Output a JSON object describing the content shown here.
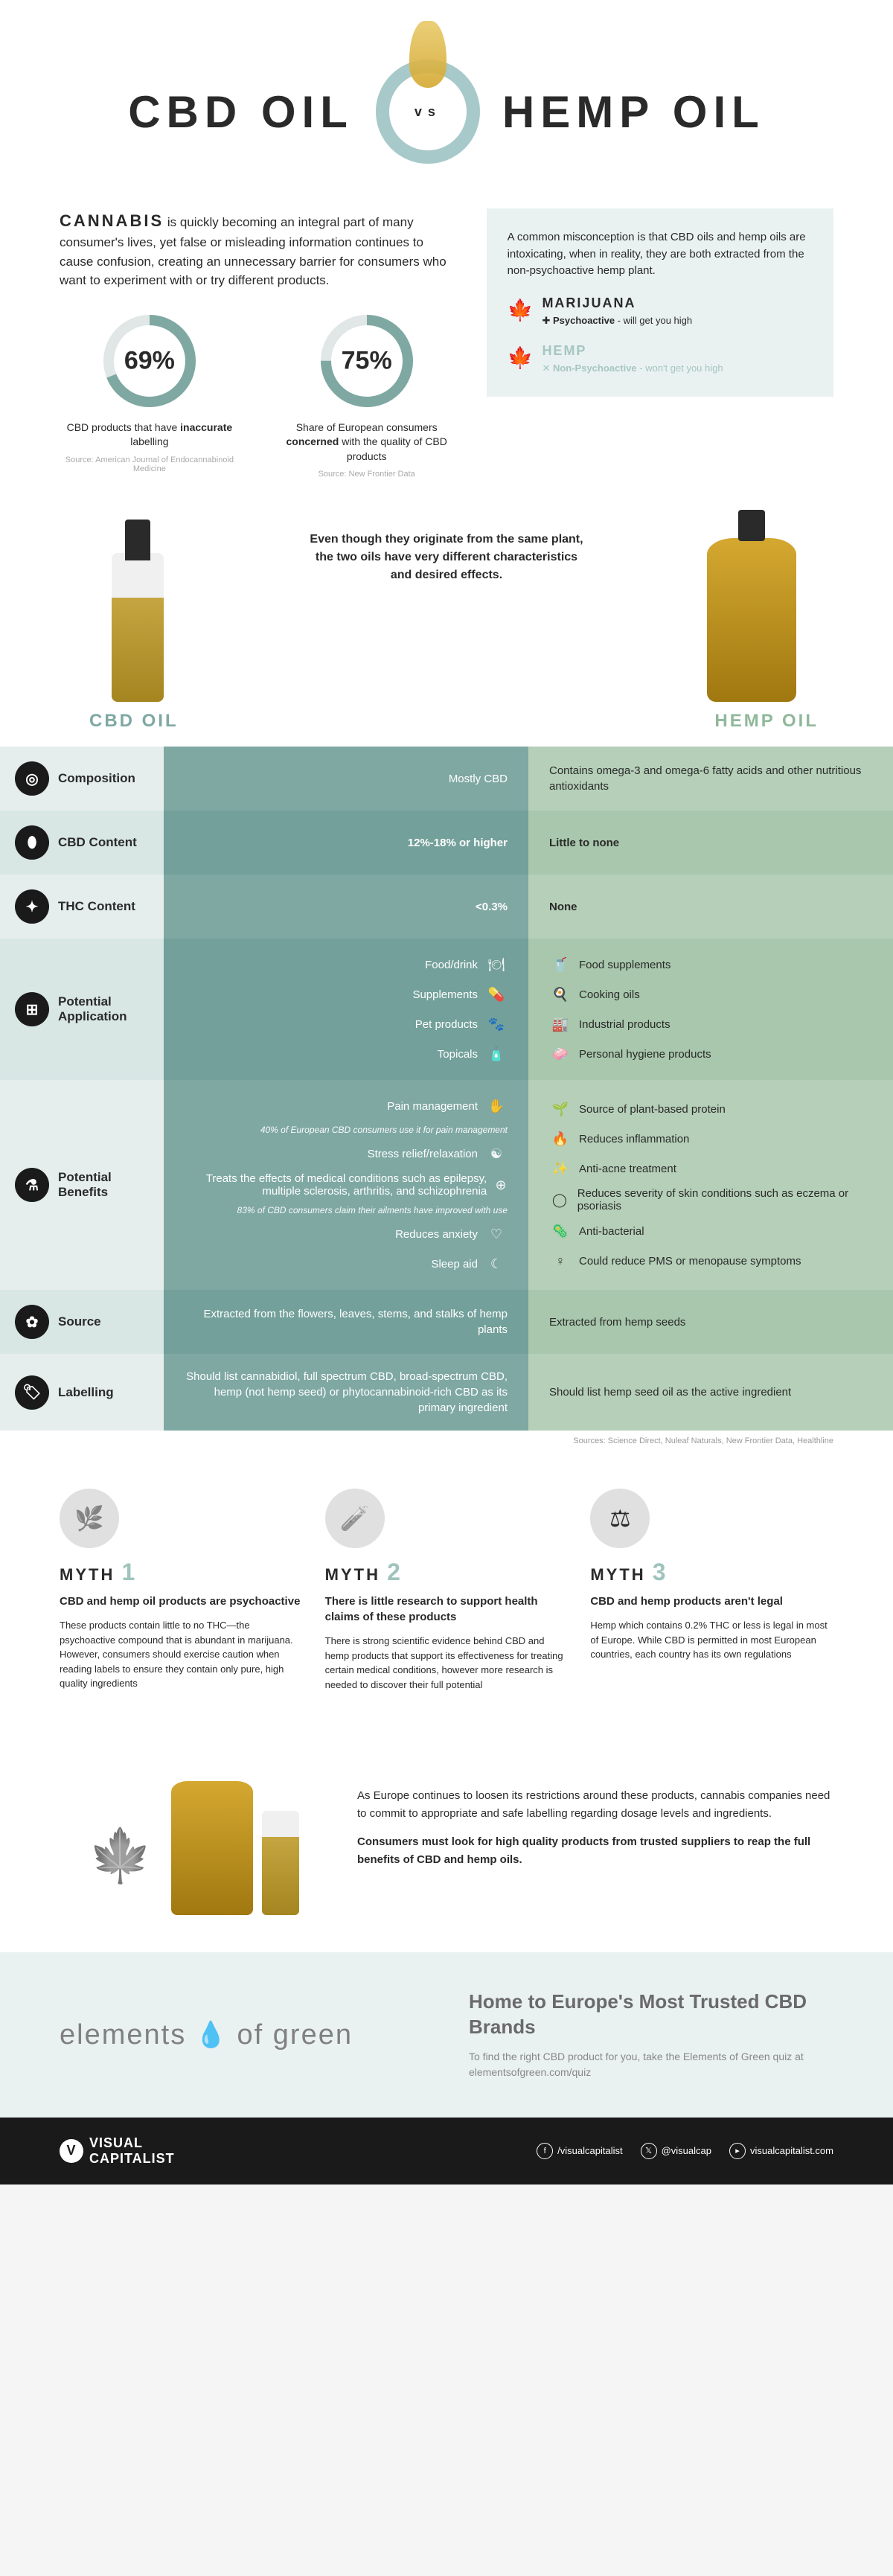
{
  "title_left": "CBD OIL",
  "title_right": "HEMP OIL",
  "vs": "vs",
  "intro_strong": "CANNABIS",
  "intro_text": " is quickly becoming an integral part of many consumer's lives, yet false or misleading information continues to cause confusion, creating an unnecessary barrier for consumers who want to experiment with or try different products.",
  "stats": [
    {
      "pct": "69%",
      "value": 69,
      "label": "CBD products that have inaccurate labelling",
      "em": "inaccurate",
      "source": "Source: American Journal of Endocannabinoid Medicine"
    },
    {
      "pct": "75%",
      "value": 75,
      "label": "Share of European consumers concerned with the quality of CBD products",
      "em": "concerned",
      "source": "Source: New Frontier Data"
    }
  ],
  "misconception": "A common misconception is that CBD oils and hemp oils are intoxicating, when in reality, they are both extracted from the non-psychoactive hemp plant.",
  "plants": [
    {
      "name": "MARIJUANA",
      "prefix": "✚",
      "bold": "Psychoactive",
      "desc": " - will get you high"
    },
    {
      "name": "HEMP",
      "prefix": "✕",
      "bold": "Non-Psychoactive",
      "desc": " - won't get you high"
    }
  ],
  "comp_intro": "Even though they originate from the same plant, the two oils have very different characteristics and desired effects.",
  "col_cbd": "CBD OIL",
  "col_hemp": "HEMP OIL",
  "rows": [
    {
      "label": "Composition",
      "icon": "◎",
      "cbd": [
        {
          "t": "Mostly CBD"
        }
      ],
      "hemp": [
        {
          "t": "Contains omega-3 and omega-6 fatty acids and other nutritious antioxidants"
        }
      ]
    },
    {
      "label": "CBD Content",
      "icon": "⬮",
      "cbd": [
        {
          "t": "12%-18% or higher",
          "b": true
        }
      ],
      "hemp": [
        {
          "t": "Little to none",
          "b": true
        }
      ]
    },
    {
      "label": "THC Content",
      "icon": "✦",
      "cbd": [
        {
          "t": "<0.3%",
          "b": true
        }
      ],
      "hemp": [
        {
          "t": "None",
          "b": true
        }
      ]
    },
    {
      "label": "Potential Application",
      "icon": "⊞",
      "cbd": [
        {
          "t": "Food/drink",
          "i": "🍽"
        },
        {
          "t": "Supplements",
          "i": "💊"
        },
        {
          "t": "Pet products",
          "i": "🐾"
        },
        {
          "t": "Topicals",
          "i": "🧴"
        }
      ],
      "hemp": [
        {
          "t": "Food supplements",
          "i": "🥤"
        },
        {
          "t": "Cooking oils",
          "i": "🍳"
        },
        {
          "t": "Industrial products",
          "i": "🏭"
        },
        {
          "t": "Personal hygiene products",
          "i": "🧼"
        }
      ]
    },
    {
      "label": "Potential Benefits",
      "icon": "⚗",
      "cbd": [
        {
          "t": "Pain management",
          "i": "✋",
          "sub": "40% of European CBD consumers use it for pain management"
        },
        {
          "t": "Stress relief/relaxation",
          "i": "☯"
        },
        {
          "t": "Treats the effects of medical conditions such as epilepsy, multiple sclerosis, arthritis, and schizophrenia",
          "i": "⊕",
          "sub": "83% of CBD consumers claim their ailments have improved with use"
        },
        {
          "t": "Reduces anxiety",
          "i": "♡"
        },
        {
          "t": "Sleep aid",
          "i": "☾"
        }
      ],
      "hemp": [
        {
          "t": "Source of plant-based protein",
          "i": "🌱"
        },
        {
          "t": "Reduces inflammation",
          "i": "🔥"
        },
        {
          "t": "Anti-acne treatment",
          "i": "✨"
        },
        {
          "t": "Reduces severity of skin conditions such as eczema or psoriasis",
          "i": "◯"
        },
        {
          "t": "Anti-bacterial",
          "i": "🦠"
        },
        {
          "t": "Could reduce PMS or menopause symptoms",
          "i": "♀"
        }
      ]
    },
    {
      "label": "Source",
      "icon": "✿",
      "cbd": [
        {
          "t": "Extracted from the flowers, leaves, stems, and stalks of hemp plants"
        }
      ],
      "hemp": [
        {
          "t": "Extracted from hemp seeds"
        }
      ]
    },
    {
      "label": "Labelling",
      "icon": "🏷",
      "cbd": [
        {
          "t": "Should list cannabidiol, full spectrum CBD, broad-spectrum CBD, hemp (not hemp seed) or phytocannabinoid-rich CBD as its primary ingredient"
        }
      ],
      "hemp": [
        {
          "t": "Should list hemp seed oil as the active ingredient"
        }
      ]
    }
  ],
  "table_sources": "Sources: Science Direct, Nuleaf Naturals, New Frontier Data, Healthline",
  "myths": [
    {
      "num": "1",
      "img": "🌿",
      "head": "CBD and hemp oil products are psychoactive",
      "body": "These products contain little to no THC—the psychoactive compound that is abundant in marijuana. However, consumers should exercise caution when reading labels to ensure they contain only pure, high quality ingredients"
    },
    {
      "num": "2",
      "img": "🧪",
      "head": "There is little research to support health claims of these products",
      "body": "There is strong scientific evidence behind CBD and hemp products that support its effectiveness for treating certain medical conditions, however more research is needed to discover their full potential"
    },
    {
      "num": "3",
      "img": "⚖",
      "head": "CBD and hemp products aren't legal",
      "body": "Hemp which contains 0.2% THC or less is legal in most of Europe. While CBD is permitted in most European countries, each country has its own regulations"
    }
  ],
  "myth_label": "MYTH",
  "conclusion_p1": "As Europe continues to loosen its restrictions around these products, cannabis companies need to commit to appropriate and safe labelling regarding dosage levels and ingredients.",
  "conclusion_p2": "Consumers must look for high quality products from trusted suppliers to reap the full benefits of CBD and hemp oils.",
  "brand_name_1": "elements",
  "brand_name_2": "of green",
  "brand_head": "Home to Europe's Most Trusted CBD Brands",
  "brand_sub": "To find the right CBD product for you, take the Elements of Green quiz at elementsofgreen.com/quiz",
  "vc_name1": "VISUAL",
  "vc_name2": "CAPITALIST",
  "socials": [
    {
      "icon": "f",
      "handle": "/visualcapitalist"
    },
    {
      "icon": "𝕏",
      "handle": "@visualcap"
    },
    {
      "icon": "▸",
      "handle": "visualcapitalist.com"
    }
  ],
  "colors": {
    "teal": "#7fa8a3",
    "sage": "#b5cfb8",
    "ring": "#7fa8a3",
    "ringbg": "#e0e7e6"
  }
}
